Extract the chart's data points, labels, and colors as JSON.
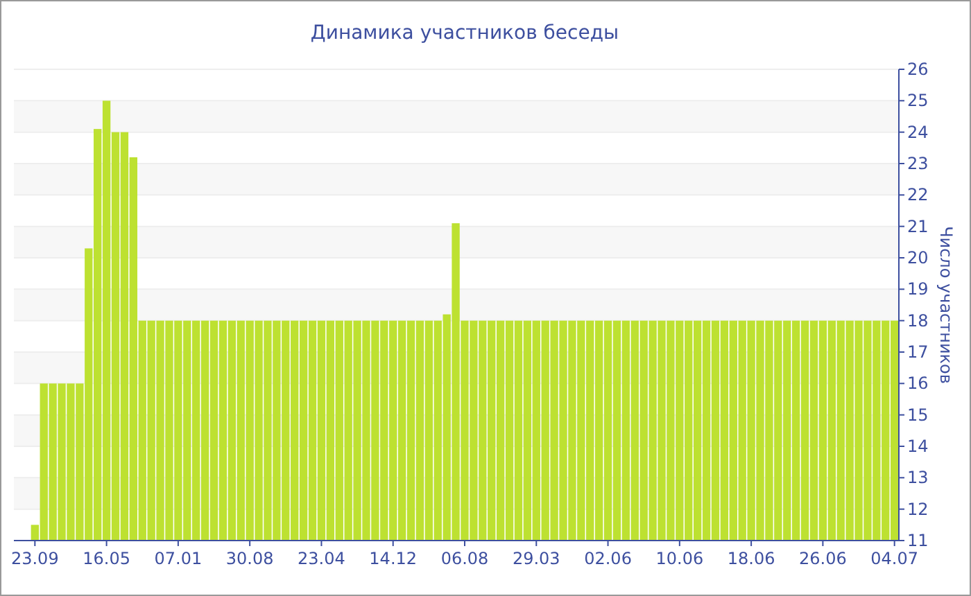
{
  "chart_data": {
    "type": "bar",
    "title": "Динамика участников беседы",
    "ylabel": "Число участников",
    "categories": [
      "23.09",
      null,
      null,
      null,
      null,
      null,
      null,
      null,
      "16.05",
      null,
      null,
      null,
      null,
      null,
      null,
      null,
      "07.01",
      null,
      null,
      null,
      null,
      null,
      null,
      null,
      "30.08",
      null,
      null,
      null,
      null,
      null,
      null,
      null,
      "23.04",
      null,
      null,
      null,
      null,
      null,
      null,
      null,
      "14.12",
      null,
      null,
      null,
      null,
      null,
      null,
      null,
      "06.08",
      null,
      null,
      null,
      null,
      null,
      null,
      null,
      "29.03",
      null,
      null,
      null,
      null,
      null,
      null,
      null,
      "02.06",
      null,
      null,
      null,
      null,
      null,
      null,
      null,
      "10.06",
      null,
      null,
      null,
      null,
      null,
      null,
      null,
      "18.06",
      null,
      null,
      null,
      null,
      null,
      null,
      null,
      "26.06",
      null,
      null,
      null,
      null,
      null,
      null,
      null,
      "04.07"
    ],
    "values": [
      11.5,
      16,
      16,
      16,
      16,
      16,
      20.3,
      24.1,
      25,
      24,
      24,
      23.2,
      18,
      18,
      18,
      18,
      18,
      18,
      18,
      18,
      18,
      18,
      18,
      18,
      18,
      18,
      18,
      18,
      18,
      18,
      18,
      18,
      18,
      18,
      18,
      18,
      18,
      18,
      18,
      18,
      18,
      18,
      18,
      18,
      18,
      18,
      18.2,
      21.1,
      18,
      18,
      18,
      18,
      18,
      18,
      18,
      18,
      18,
      18,
      18,
      18,
      18,
      18,
      18,
      18,
      18,
      18,
      18,
      18,
      18,
      18,
      18,
      18,
      18,
      18,
      18,
      18,
      18,
      18,
      18,
      18,
      18,
      18,
      18,
      18,
      18,
      18,
      18,
      18,
      18,
      18,
      18,
      18,
      18,
      18,
      18,
      18,
      18
    ],
    "color": "#bde131",
    "ylim": [
      11,
      26
    ],
    "yticks": [
      11,
      12,
      13,
      14,
      15,
      16,
      17,
      18,
      19,
      20,
      21,
      22,
      23,
      24,
      25,
      26
    ],
    "grid": "y"
  }
}
